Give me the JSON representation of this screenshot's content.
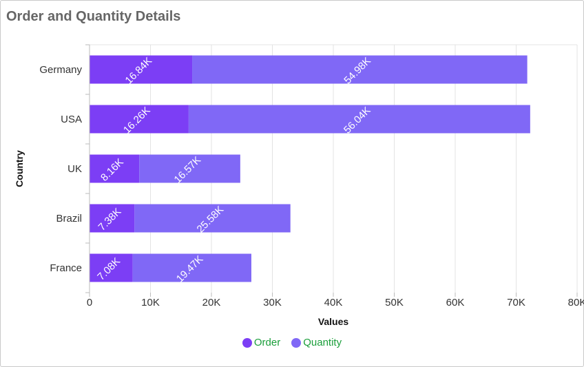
{
  "chart_data": {
    "type": "bar",
    "orientation": "horizontal",
    "stacked": true,
    "title": "Order and Quantity Details",
    "xlabel": "Values",
    "ylabel": "Country",
    "categories": [
      "Germany",
      "USA",
      "UK",
      "Brazil",
      "France"
    ],
    "xlim": [
      0,
      80000
    ],
    "x_ticks": [
      {
        "value": 0,
        "label": "0"
      },
      {
        "value": 10000,
        "label": "10K"
      },
      {
        "value": 20000,
        "label": "20K"
      },
      {
        "value": 30000,
        "label": "30K"
      },
      {
        "value": 40000,
        "label": "40K"
      },
      {
        "value": 50000,
        "label": "50K"
      },
      {
        "value": 60000,
        "label": "60K"
      },
      {
        "value": 70000,
        "label": "70K"
      },
      {
        "value": 80000,
        "label": "80K"
      }
    ],
    "series": [
      {
        "name": "Order",
        "color": "#7c3ef5",
        "values": [
          16840,
          16260,
          8160,
          7380,
          7080
        ],
        "labels": [
          "16.84K",
          "16.26K",
          "8.16K",
          "7.38K",
          "7.08K"
        ]
      },
      {
        "name": "Quantity",
        "color": "#8068f6",
        "values": [
          54980,
          56040,
          16570,
          25580,
          19470
        ],
        "labels": [
          "54.98K",
          "56.04K",
          "16.57K",
          "25.58K",
          "19.47K"
        ]
      }
    ],
    "grid": true,
    "legend_position": "bottom"
  },
  "legend": {
    "text_color": "#1a9e3a",
    "items": [
      {
        "label": "Order",
        "color": "#7c3ef5"
      },
      {
        "label": "Quantity",
        "color": "#8068f6"
      }
    ]
  }
}
